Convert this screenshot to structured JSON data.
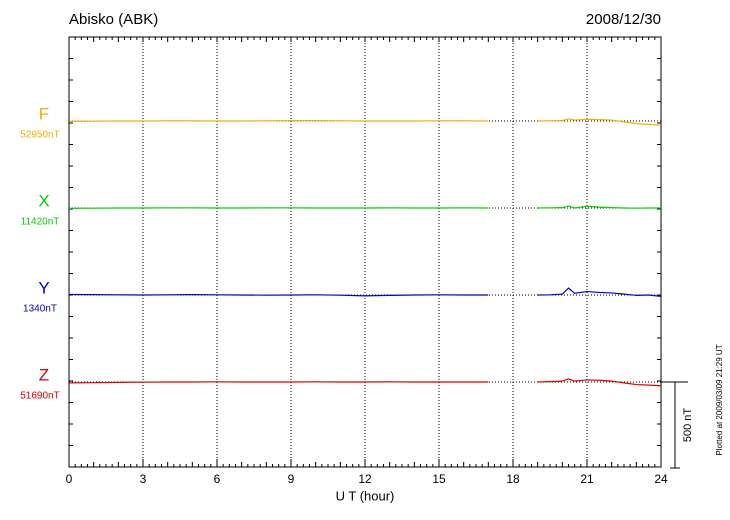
{
  "chart_data": {
    "type": "line",
    "title": "Abisko (ABK)",
    "date": "2008/12/30",
    "x_label": "U T (hour)",
    "note": "Plotted at 2009/03/09 21:29 UT",
    "xlim": [
      0,
      24
    ],
    "xticks": [
      0,
      3,
      6,
      9,
      12,
      15,
      18,
      21,
      24
    ],
    "grid": true,
    "scale_bar": {
      "value": 500,
      "label": "500 nT"
    },
    "x": [
      0,
      1,
      2,
      3,
      4,
      5,
      6,
      7,
      8,
      9,
      10,
      11,
      12,
      13,
      14,
      15,
      16,
      17,
      18,
      19,
      19.5,
      20,
      20.25,
      20.5,
      21,
      21.5,
      22,
      22.5,
      23,
      23.5,
      24
    ],
    "series": [
      {
        "name": "F",
        "color": "#f0b000",
        "baseline": {
          "value": 52950,
          "label": "52950nT"
        },
        "values": [
          52948,
          52949,
          52950,
          52950,
          52951,
          52951,
          52950,
          52950,
          52951,
          52952,
          52952,
          52951,
          52950,
          52950,
          52950,
          52951,
          52951,
          52950,
          null,
          52950,
          52951,
          52953,
          52962,
          52955,
          52960,
          52958,
          52955,
          52945,
          52935,
          52930,
          52925
        ]
      },
      {
        "name": "X",
        "color": "#00d000",
        "baseline": {
          "value": 11420,
          "label": "11420nT"
        },
        "values": [
          11418,
          11419,
          11420,
          11420,
          11421,
          11421,
          11420,
          11420,
          11421,
          11421,
          11420,
          11420,
          11420,
          11421,
          11420,
          11420,
          11421,
          11420,
          null,
          11420,
          11421,
          11422,
          11432,
          11420,
          11430,
          11425,
          11422,
          11420,
          11419,
          11420,
          11420
        ]
      },
      {
        "name": "Y",
        "color": "#0000cc",
        "baseline": {
          "value": 1340,
          "label": "1340nT"
        },
        "values": [
          1343,
          1342,
          1341,
          1340,
          1341,
          1342,
          1341,
          1340,
          1339,
          1340,
          1341,
          1339,
          1335,
          1338,
          1340,
          1341,
          1340,
          1340,
          null,
          1340,
          1341,
          1345,
          1380,
          1350,
          1360,
          1355,
          1352,
          1345,
          1338,
          1340,
          1332
        ]
      },
      {
        "name": "Z",
        "color": "#dd0000",
        "baseline": {
          "value": 51690,
          "label": "51690nT"
        },
        "values": [
          51685,
          51686,
          51688,
          51689,
          51690,
          51690,
          51691,
          51690,
          51690,
          51690,
          51691,
          51690,
          51690,
          51691,
          51690,
          51690,
          51690,
          51690,
          null,
          51690,
          51692,
          51695,
          51708,
          51695,
          51702,
          51700,
          51695,
          51685,
          51675,
          51672,
          51668
        ]
      }
    ]
  }
}
